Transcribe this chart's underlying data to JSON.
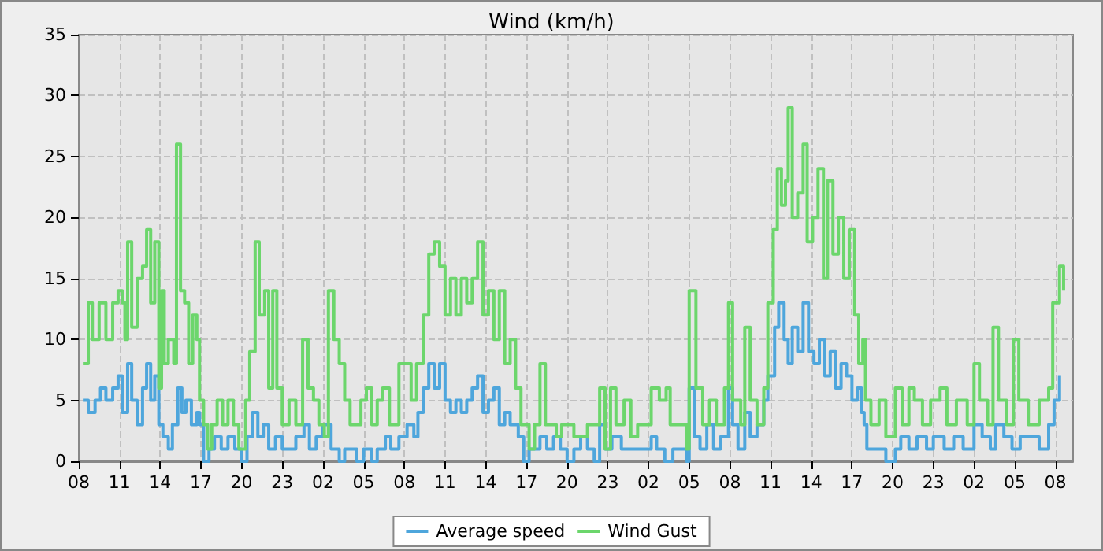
{
  "chart_data": {
    "type": "step",
    "title": "Wind (km/h)",
    "xlim": [
      "--01-01T08:00",
      "--01-04T09:18"
    ],
    "xticks": [
      {
        "value": "--01-01T08:00",
        "label": "08"
      },
      {
        "value": "--01-01T11:00",
        "label": "11"
      },
      {
        "value": "--01-01T14:00",
        "label": "14"
      },
      {
        "value": "--01-01T17:00",
        "label": "17"
      },
      {
        "value": "--01-01T20:00",
        "label": "20"
      },
      {
        "value": "--01-01T23:00",
        "label": "23"
      },
      {
        "value": "--01-02T02:00",
        "label": "02"
      },
      {
        "value": "--01-02T05:00",
        "label": "05"
      },
      {
        "value": "--01-02T08:00",
        "label": "08"
      },
      {
        "value": "--01-02T11:00",
        "label": "11"
      },
      {
        "value": "--01-02T14:00",
        "label": "14"
      },
      {
        "value": "--01-02T17:00",
        "label": "17"
      },
      {
        "value": "--01-02T20:00",
        "label": "20"
      },
      {
        "value": "--01-02T23:00",
        "label": "23"
      },
      {
        "value": "--01-03T02:00",
        "label": "02"
      },
      {
        "value": "--01-03T05:00",
        "label": "05"
      },
      {
        "value": "--01-03T08:00",
        "label": "08"
      },
      {
        "value": "--01-03T11:00",
        "label": "11"
      },
      {
        "value": "--01-03T14:00",
        "label": "14"
      },
      {
        "value": "--01-03T17:00",
        "label": "17"
      },
      {
        "value": "--01-03T20:00",
        "label": "20"
      },
      {
        "value": "--01-03T23:00",
        "label": "23"
      },
      {
        "value": "--01-04T02:00",
        "label": "02"
      },
      {
        "value": "--01-04T05:00",
        "label": "05"
      },
      {
        "value": "--01-04T08:00",
        "label": "08"
      }
    ],
    "ylim": [
      0,
      35
    ],
    "yticks": [
      0,
      5,
      10,
      15,
      20,
      25,
      30,
      35
    ],
    "grid": true,
    "legend": "bottom",
    "marker": "none",
    "series": [
      {
        "name": "Average speed",
        "color": "#4ea6dc",
        "x": [
          "--01-01T08:18",
          "--01-01T08:42",
          "--01-01T09:12",
          "--01-01T09:36",
          "--01-01T10:00",
          "--01-01T10:30",
          "--01-01T10:54",
          "--01-01T11:12",
          "--01-01T11:36",
          "--01-01T11:54",
          "--01-01T12:18",
          "--01-01T12:42",
          "--01-01T13:00",
          "--01-01T13:18",
          "--01-01T13:36",
          "--01-01T13:54",
          "--01-01T14:12",
          "--01-01T14:36",
          "--01-01T14:54",
          "--01-01T15:18",
          "--01-01T15:36",
          "--01-01T15:54",
          "--01-01T16:18",
          "--01-01T16:42",
          "--01-01T16:54",
          "--01-01T17:12",
          "--01-01T17:36",
          "--01-01T18:00",
          "--01-01T18:30",
          "--01-01T19:00",
          "--01-01T19:30",
          "--01-01T20:00",
          "--01-01T20:24",
          "--01-01T20:48",
          "--01-01T21:12",
          "--01-01T21:36",
          "--01-01T22:00",
          "--01-01T22:30",
          "--01-01T23:00",
          "--01-02T00:00",
          "--01-02T00:36",
          "--01-02T01:00",
          "--01-02T01:30",
          "--01-02T02:00",
          "--01-02T02:36",
          "--01-02T03:12",
          "--01-02T03:36",
          "--01-02T04:30",
          "--01-02T05:00",
          "--01-02T05:36",
          "--01-02T06:00",
          "--01-02T06:36",
          "--01-02T07:00",
          "--01-02T07:36",
          "--01-02T08:12",
          "--01-02T08:42",
          "--01-02T09:00",
          "--01-02T09:24",
          "--01-02T09:48",
          "--01-02T10:12",
          "--01-02T10:36",
          "--01-02T11:00",
          "--01-02T11:24",
          "--01-02T11:48",
          "--01-02T12:12",
          "--01-02T12:36",
          "--01-02T13:00",
          "--01-02T13:24",
          "--01-02T13:48",
          "--01-02T14:12",
          "--01-02T14:36",
          "--01-02T15:00",
          "--01-02T15:24",
          "--01-02T15:48",
          "--01-02T16:24",
          "--01-02T16:48",
          "--01-02T17:12",
          "--01-02T18:00",
          "--01-02T18:30",
          "--01-02T19:00",
          "--01-02T19:30",
          "--01-02T20:00",
          "--01-02T20:30",
          "--01-02T21:00",
          "--01-02T21:30",
          "--01-02T22:00",
          "--01-02T22:24",
          "--01-02T22:48",
          "--01-02T23:18",
          "--01-03T00:00",
          "--01-03T01:00",
          "--01-03T02:12",
          "--01-03T02:36",
          "--01-03T03:12",
          "--01-03T03:48",
          "--01-03T04:48",
          "--01-03T05:00",
          "--01-03T05:24",
          "--01-03T05:48",
          "--01-03T06:18",
          "--01-03T06:48",
          "--01-03T07:18",
          "--01-03T07:54",
          "--01-03T08:12",
          "--01-03T08:36",
          "--01-03T09:06",
          "--01-03T09:30",
          "--01-03T10:00",
          "--01-03T10:30",
          "--01-03T10:48",
          "--01-03T11:18",
          "--01-03T11:36",
          "--01-03T12:00",
          "--01-03T12:18",
          "--01-03T12:36",
          "--01-03T13:00",
          "--01-03T13:24",
          "--01-03T13:48",
          "--01-03T14:12",
          "--01-03T14:36",
          "--01-03T15:00",
          "--01-03T15:24",
          "--01-03T15:48",
          "--01-03T16:12",
          "--01-03T16:36",
          "--01-03T17:00",
          "--01-03T17:24",
          "--01-03T17:42",
          "--01-03T17:54",
          "--01-03T18:06",
          "--01-03T19:30",
          "--01-03T20:12",
          "--01-03T20:36",
          "--01-03T21:12",
          "--01-03T21:48",
          "--01-03T22:30",
          "--01-03T23:00",
          "--01-03T23:48",
          "--01-04T00:30",
          "--01-04T01:12",
          "--01-04T02:00",
          "--01-04T02:36",
          "--01-04T03:12",
          "--01-04T03:36",
          "--01-04T04:12",
          "--01-04T04:48",
          "--01-04T05:24",
          "--01-04T06:12",
          "--01-04T06:48",
          "--01-04T07:30",
          "--01-04T07:54",
          "--01-04T08:18"
        ],
        "values": [
          5,
          4,
          5,
          6,
          5,
          6,
          7,
          4,
          8,
          5,
          3,
          6,
          8,
          5,
          7,
          3,
          2,
          1,
          3,
          6,
          4,
          5,
          3,
          4,
          3,
          0,
          1,
          2,
          1,
          2,
          1,
          0,
          2,
          4,
          2,
          3,
          1,
          2,
          1,
          2,
          3,
          1,
          2,
          3,
          1,
          0,
          1,
          0,
          1,
          0,
          1,
          2,
          1,
          2,
          3,
          2,
          4,
          6,
          8,
          6,
          8,
          5,
          4,
          5,
          4,
          5,
          6,
          7,
          4,
          5,
          6,
          3,
          4,
          3,
          2,
          0,
          1,
          2,
          1,
          2,
          1,
          0,
          1,
          2,
          1,
          0,
          3,
          1,
          2,
          1,
          1,
          2,
          1,
          0,
          1,
          0,
          6,
          2,
          1,
          3,
          1,
          2,
          6,
          3,
          1,
          4,
          2,
          3,
          5,
          7,
          11,
          13,
          10,
          8,
          11,
          9,
          13,
          9,
          8,
          10,
          7,
          9,
          6,
          8,
          7,
          5,
          6,
          4,
          3,
          1,
          0,
          1,
          2,
          1,
          2,
          1,
          2,
          1,
          2,
          1,
          3,
          2,
          1,
          3,
          2,
          1,
          2,
          2,
          1,
          3,
          5,
          7
        ]
      },
      {
        "name": "Wind Gust",
        "color": "#6cd66c",
        "x": [
          "--01-01T08:18",
          "--01-01T08:42",
          "--01-01T09:00",
          "--01-01T09:30",
          "--01-01T10:00",
          "--01-01T10:30",
          "--01-01T10:54",
          "--01-01T11:12",
          "--01-01T11:24",
          "--01-01T11:36",
          "--01-01T11:54",
          "--01-01T12:18",
          "--01-01T12:42",
          "--01-01T13:00",
          "--01-01T13:18",
          "--01-01T13:36",
          "--01-01T13:54",
          "--01-01T14:06",
          "--01-01T14:18",
          "--01-01T14:36",
          "--01-01T15:00",
          "--01-01T15:12",
          "--01-01T15:30",
          "--01-01T15:48",
          "--01-01T16:06",
          "--01-01T16:24",
          "--01-01T16:42",
          "--01-01T16:54",
          "--01-01T17:12",
          "--01-01T17:30",
          "--01-01T17:48",
          "--01-01T18:12",
          "--01-01T18:36",
          "--01-01T19:00",
          "--01-01T19:24",
          "--01-01T19:48",
          "--01-01T20:18",
          "--01-01T20:36",
          "--01-01T21:00",
          "--01-01T21:18",
          "--01-01T21:42",
          "--01-01T22:00",
          "--01-01T22:18",
          "--01-01T22:36",
          "--01-01T23:00",
          "--01-01T23:30",
          "--01-02T00:00",
          "--01-02T00:30",
          "--01-02T00:54",
          "--01-02T01:18",
          "--01-02T01:42",
          "--01-02T02:06",
          "--01-02T02:24",
          "--01-02T02:48",
          "--01-02T03:12",
          "--01-02T03:36",
          "--01-02T04:00",
          "--01-02T04:48",
          "--01-02T05:12",
          "--01-02T05:36",
          "--01-02T06:00",
          "--01-02T06:24",
          "--01-02T06:54",
          "--01-02T07:36",
          "--01-02T08:30",
          "--01-02T08:54",
          "--01-02T09:24",
          "--01-02T09:48",
          "--01-02T10:12",
          "--01-02T10:36",
          "--01-02T11:00",
          "--01-02T11:24",
          "--01-02T11:48",
          "--01-02T12:12",
          "--01-02T12:36",
          "--01-02T13:00",
          "--01-02T13:24",
          "--01-02T13:48",
          "--01-02T14:12",
          "--01-02T14:36",
          "--01-02T15:00",
          "--01-02T15:24",
          "--01-02T15:48",
          "--01-02T16:12",
          "--01-02T16:36",
          "--01-02T17:12",
          "--01-02T17:36",
          "--01-02T18:00",
          "--01-02T18:24",
          "--01-02T19:12",
          "--01-02T19:36",
          "--01-02T20:30",
          "--01-02T21:30",
          "--01-02T22:24",
          "--01-02T22:48",
          "--01-02T23:12",
          "--01-02T23:36",
          "--01-03T00:12",
          "--01-03T00:42",
          "--01-03T01:12",
          "--01-03T02:12",
          "--01-03T02:48",
          "--01-03T03:18",
          "--01-03T03:36",
          "--01-03T04:48",
          "--01-03T05:00",
          "--01-03T05:30",
          "--01-03T06:00",
          "--01-03T06:30",
          "--01-03T07:00",
          "--01-03T07:36",
          "--01-03T07:54",
          "--01-03T08:12",
          "--01-03T08:48",
          "--01-03T09:06",
          "--01-03T09:30",
          "--01-03T10:00",
          "--01-03T10:30",
          "--01-03T10:48",
          "--01-03T11:12",
          "--01-03T11:30",
          "--01-03T11:48",
          "--01-03T12:06",
          "--01-03T12:18",
          "--01-03T12:36",
          "--01-03T13:00",
          "--01-03T13:24",
          "--01-03T13:42",
          "--01-03T14:06",
          "--01-03T14:30",
          "--01-03T14:54",
          "--01-03T15:12",
          "--01-03T15:36",
          "--01-03T16:00",
          "--01-03T16:24",
          "--01-03T16:48",
          "--01-03T17:12",
          "--01-03T17:30",
          "--01-03T17:48",
          "--01-03T18:00",
          "--01-03T18:24",
          "--01-03T19:00",
          "--01-03T19:30",
          "--01-03T20:12",
          "--01-03T20:42",
          "--01-03T21:12",
          "--01-03T21:36",
          "--01-03T22:12",
          "--01-03T22:48",
          "--01-03T23:30",
          "--01-04T00:00",
          "--01-04T00:42",
          "--01-04T01:30",
          "--01-04T02:00",
          "--01-04T02:24",
          "--01-04T03:00",
          "--01-04T03:24",
          "--01-04T03:48",
          "--01-04T04:24",
          "--01-04T04:54",
          "--01-04T05:18",
          "--01-04T06:00",
          "--01-04T06:48",
          "--01-04T07:30",
          "--01-04T07:48",
          "--01-04T08:18",
          "--01-04T08:36"
        ],
        "values": [
          8,
          13,
          10,
          13,
          10,
          13,
          14,
          13,
          10,
          18,
          11,
          15,
          16,
          19,
          13,
          18,
          6,
          14,
          8,
          10,
          8,
          26,
          14,
          13,
          8,
          12,
          10,
          5,
          3,
          1,
          3,
          5,
          3,
          5,
          3,
          1,
          5,
          9,
          18,
          12,
          14,
          6,
          14,
          6,
          3,
          5,
          3,
          10,
          6,
          5,
          3,
          2,
          14,
          10,
          8,
          5,
          3,
          5,
          6,
          3,
          5,
          6,
          3,
          8,
          5,
          8,
          12,
          17,
          18,
          16,
          12,
          15,
          12,
          15,
          13,
          15,
          18,
          12,
          14,
          10,
          14,
          8,
          10,
          6,
          3,
          1,
          3,
          8,
          3,
          2,
          3,
          2,
          3,
          6,
          1,
          6,
          3,
          5,
          2,
          3,
          6,
          5,
          6,
          3,
          1,
          14,
          6,
          3,
          5,
          3,
          6,
          13,
          5,
          3,
          11,
          5,
          3,
          6,
          13,
          19,
          24,
          21,
          23,
          29,
          20,
          22,
          26,
          18,
          20,
          24,
          15,
          23,
          17,
          20,
          15,
          19,
          12,
          8,
          10,
          5,
          3,
          5,
          2,
          6,
          3,
          6,
          5,
          3,
          5,
          6,
          3,
          5,
          3,
          8,
          5,
          3,
          11,
          5,
          3,
          10,
          5,
          3,
          5,
          6,
          13,
          16,
          14
        ]
      }
    ]
  }
}
